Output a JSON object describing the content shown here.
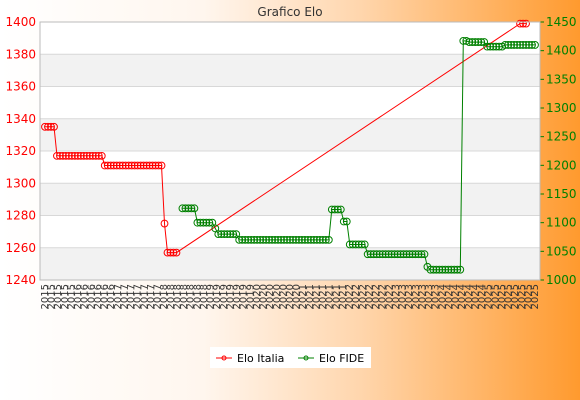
{
  "chart_data": {
    "type": "line",
    "title": "Grafico Elo",
    "y_left": {
      "lim": [
        1240,
        1400
      ],
      "ticks": [
        1240,
        1260,
        1280,
        1300,
        1320,
        1340,
        1360,
        1380,
        1400
      ],
      "color": "#ff0000"
    },
    "y_right": {
      "lim": [
        1000,
        1450
      ],
      "ticks": [
        1000,
        1050,
        1100,
        1150,
        1200,
        1250,
        1300,
        1350,
        1400,
        1450
      ],
      "color": "#008000"
    },
    "x_tick_labels": [
      "2015",
      "2015",
      "2015",
      "2015",
      "2015",
      "2016",
      "2016",
      "2016",
      "2016",
      "2016",
      "2016",
      "2017",
      "2017",
      "2017",
      "2017",
      "2017",
      "2017",
      "2017",
      "2018",
      "2018",
      "2018",
      "2018",
      "2018",
      "2018",
      "2018",
      "2019",
      "2019",
      "2019",
      "2019",
      "2019",
      "2019",
      "2019",
      "2020",
      "2020",
      "2020",
      "2020",
      "2020",
      "2020",
      "2020",
      "2021",
      "2021",
      "2021",
      "2021",
      "2021",
      "2021",
      "2021",
      "2022",
      "2022",
      "2022",
      "2022",
      "2022",
      "2022",
      "2022",
      "2023",
      "2023",
      "2023",
      "2023",
      "2023",
      "2023",
      "2023",
      "2024",
      "2024",
      "2024",
      "2024",
      "2024",
      "2024",
      "2024",
      "2025",
      "2025",
      "2025",
      "2025",
      "2025",
      "2025",
      "2025",
      "2025"
    ],
    "grid": true,
    "legend": "bottom-center",
    "series": [
      {
        "name": "Elo Italia",
        "axis": "left",
        "color": "#ff0000",
        "points": [
          [
            0,
            1335
          ],
          [
            1,
            1335
          ],
          [
            2,
            1335
          ],
          [
            3,
            1335
          ],
          [
            4,
            1317
          ],
          [
            5,
            1317
          ],
          [
            6,
            1317
          ],
          [
            7,
            1317
          ],
          [
            8,
            1317
          ],
          [
            9,
            1317
          ],
          [
            10,
            1317
          ],
          [
            11,
            1317
          ],
          [
            12,
            1317
          ],
          [
            13,
            1317
          ],
          [
            14,
            1317
          ],
          [
            15,
            1317
          ],
          [
            16,
            1317
          ],
          [
            17,
            1317
          ],
          [
            18,
            1317
          ],
          [
            19,
            1317
          ],
          [
            20,
            1311
          ],
          [
            21,
            1311
          ],
          [
            22,
            1311
          ],
          [
            23,
            1311
          ],
          [
            24,
            1311
          ],
          [
            25,
            1311
          ],
          [
            26,
            1311
          ],
          [
            27,
            1311
          ],
          [
            28,
            1311
          ],
          [
            29,
            1311
          ],
          [
            30,
            1311
          ],
          [
            31,
            1311
          ],
          [
            32,
            1311
          ],
          [
            33,
            1311
          ],
          [
            34,
            1311
          ],
          [
            35,
            1311
          ],
          [
            36,
            1311
          ],
          [
            37,
            1311
          ],
          [
            38,
            1311
          ],
          [
            39,
            1311
          ],
          [
            40,
            1275
          ],
          [
            41,
            1257
          ],
          [
            42,
            1257
          ],
          [
            43,
            1257
          ],
          [
            44,
            1257
          ],
          [
            159,
            1399
          ],
          [
            160,
            1399
          ],
          [
            161,
            1399
          ]
        ]
      },
      {
        "name": "Elo FIDE",
        "axis": "right",
        "color": "#008000",
        "points": [
          [
            46,
            1125
          ],
          [
            47,
            1125
          ],
          [
            48,
            1125
          ],
          [
            49,
            1125
          ],
          [
            50,
            1125
          ],
          [
            51,
            1100
          ],
          [
            52,
            1100
          ],
          [
            53,
            1100
          ],
          [
            54,
            1100
          ],
          [
            55,
            1100
          ],
          [
            56,
            1100
          ],
          [
            57,
            1090
          ],
          [
            58,
            1080
          ],
          [
            59,
            1080
          ],
          [
            60,
            1080
          ],
          [
            61,
            1080
          ],
          [
            62,
            1080
          ],
          [
            63,
            1080
          ],
          [
            64,
            1080
          ],
          [
            65,
            1070
          ],
          [
            66,
            1070
          ],
          [
            67,
            1070
          ],
          [
            68,
            1070
          ],
          [
            69,
            1070
          ],
          [
            70,
            1070
          ],
          [
            71,
            1070
          ],
          [
            72,
            1070
          ],
          [
            73,
            1070
          ],
          [
            74,
            1070
          ],
          [
            75,
            1070
          ],
          [
            76,
            1070
          ],
          [
            77,
            1070
          ],
          [
            78,
            1070
          ],
          [
            79,
            1070
          ],
          [
            80,
            1070
          ],
          [
            81,
            1070
          ],
          [
            82,
            1070
          ],
          [
            83,
            1070
          ],
          [
            84,
            1070
          ],
          [
            85,
            1070
          ],
          [
            86,
            1070
          ],
          [
            87,
            1070
          ],
          [
            88,
            1070
          ],
          [
            89,
            1070
          ],
          [
            90,
            1070
          ],
          [
            91,
            1070
          ],
          [
            92,
            1070
          ],
          [
            93,
            1070
          ],
          [
            94,
            1070
          ],
          [
            95,
            1070
          ],
          [
            96,
            1123
          ],
          [
            97,
            1123
          ],
          [
            98,
            1123
          ],
          [
            99,
            1123
          ],
          [
            100,
            1102
          ],
          [
            101,
            1102
          ],
          [
            102,
            1062
          ],
          [
            103,
            1062
          ],
          [
            104,
            1062
          ],
          [
            105,
            1062
          ],
          [
            106,
            1062
          ],
          [
            107,
            1062
          ],
          [
            108,
            1045
          ],
          [
            109,
            1045
          ],
          [
            110,
            1045
          ],
          [
            111,
            1045
          ],
          [
            112,
            1045
          ],
          [
            113,
            1045
          ],
          [
            114,
            1045
          ],
          [
            115,
            1045
          ],
          [
            116,
            1045
          ],
          [
            117,
            1045
          ],
          [
            118,
            1045
          ],
          [
            119,
            1045
          ],
          [
            120,
            1045
          ],
          [
            121,
            1045
          ],
          [
            122,
            1045
          ],
          [
            123,
            1045
          ],
          [
            124,
            1045
          ],
          [
            125,
            1045
          ],
          [
            126,
            1045
          ],
          [
            127,
            1045
          ],
          [
            128,
            1023
          ],
          [
            129,
            1018
          ],
          [
            130,
            1018
          ],
          [
            131,
            1018
          ],
          [
            132,
            1018
          ],
          [
            133,
            1018
          ],
          [
            134,
            1018
          ],
          [
            135,
            1018
          ],
          [
            136,
            1018
          ],
          [
            137,
            1018
          ],
          [
            138,
            1018
          ],
          [
            139,
            1018
          ],
          [
            140,
            1417
          ],
          [
            141,
            1417
          ],
          [
            142,
            1415
          ],
          [
            143,
            1415
          ],
          [
            144,
            1415
          ],
          [
            145,
            1415
          ],
          [
            146,
            1415
          ],
          [
            147,
            1415
          ],
          [
            148,
            1407
          ],
          [
            149,
            1407
          ],
          [
            150,
            1407
          ],
          [
            151,
            1407
          ],
          [
            152,
            1407
          ],
          [
            153,
            1407
          ],
          [
            154,
            1410
          ],
          [
            155,
            1410
          ],
          [
            156,
            1410
          ],
          [
            157,
            1410
          ],
          [
            158,
            1410
          ],
          [
            159,
            1410
          ],
          [
            160,
            1410
          ],
          [
            161,
            1410
          ],
          [
            162,
            1410
          ],
          [
            163,
            1410
          ],
          [
            164,
            1410
          ]
        ]
      }
    ]
  }
}
